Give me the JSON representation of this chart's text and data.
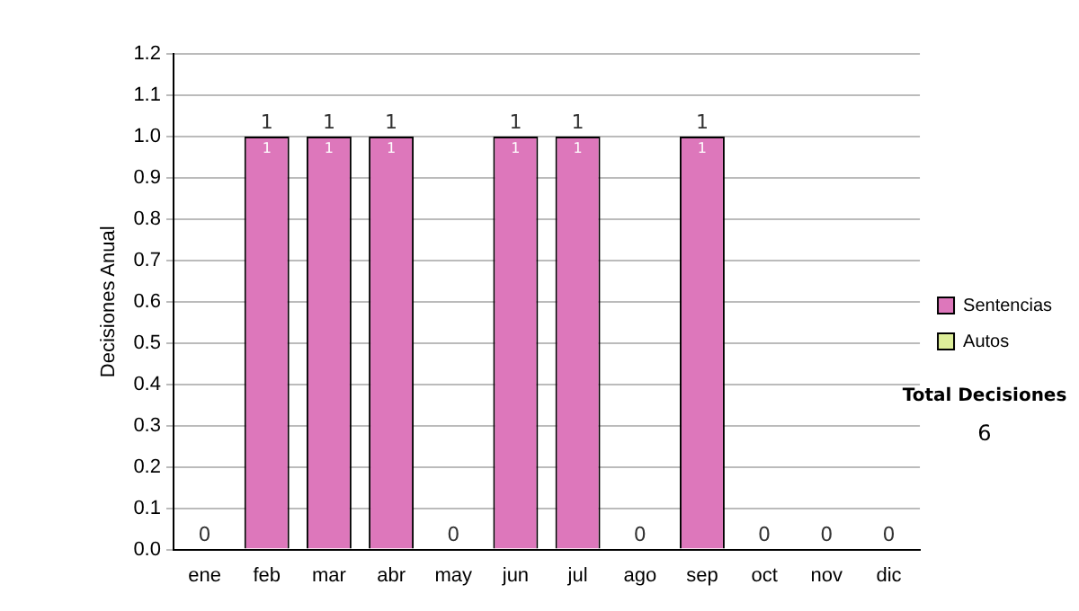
{
  "chart_data": {
    "type": "bar",
    "stacked": true,
    "ylabel": "Decisiones Anual",
    "categories": [
      "ene",
      "feb",
      "mar",
      "abr",
      "may",
      "jun",
      "jul",
      "ago",
      "sep",
      "oct",
      "nov",
      "dic"
    ],
    "series": [
      {
        "name": "Sentencias",
        "color": "#dd77bb",
        "values": [
          0,
          1,
          1,
          1,
          0,
          1,
          1,
          0,
          1,
          0,
          0,
          0
        ],
        "value_labels": [
          null,
          "1",
          "1",
          "1",
          null,
          "1",
          "1",
          null,
          "1",
          null,
          null,
          null
        ]
      },
      {
        "name": "Autos",
        "color": "#ddee99",
        "values": [
          0,
          0,
          0,
          0,
          0,
          0,
          0,
          0,
          0,
          0,
          0,
          0
        ]
      }
    ],
    "totals": [
      "0",
      "1",
      "1",
      "1",
      "0",
      "1",
      "1",
      "0",
      "1",
      "0",
      "0",
      "0"
    ],
    "ylim": [
      0,
      1.2
    ],
    "yticks": [
      {
        "value": 0,
        "label": "0.0"
      },
      {
        "value": 0.1,
        "label": "0.1"
      },
      {
        "value": 0.2,
        "label": "0.2"
      },
      {
        "value": 0.3,
        "label": "0.3"
      },
      {
        "value": 0.4,
        "label": "0.4"
      },
      {
        "value": 0.5,
        "label": "0.5"
      },
      {
        "value": 0.6,
        "label": "0.6"
      },
      {
        "value": 0.7,
        "label": "0.7"
      },
      {
        "value": 0.8,
        "label": "0.8"
      },
      {
        "value": 0.9,
        "label": "0.9"
      },
      {
        "value": 1,
        "label": "1.0"
      },
      {
        "value": 1.1,
        "label": "1.1"
      },
      {
        "value": 1.2,
        "label": "1.2"
      }
    ],
    "grid": "y",
    "legend": "right",
    "annotations": [
      "Total Decisiones",
      "6"
    ]
  }
}
